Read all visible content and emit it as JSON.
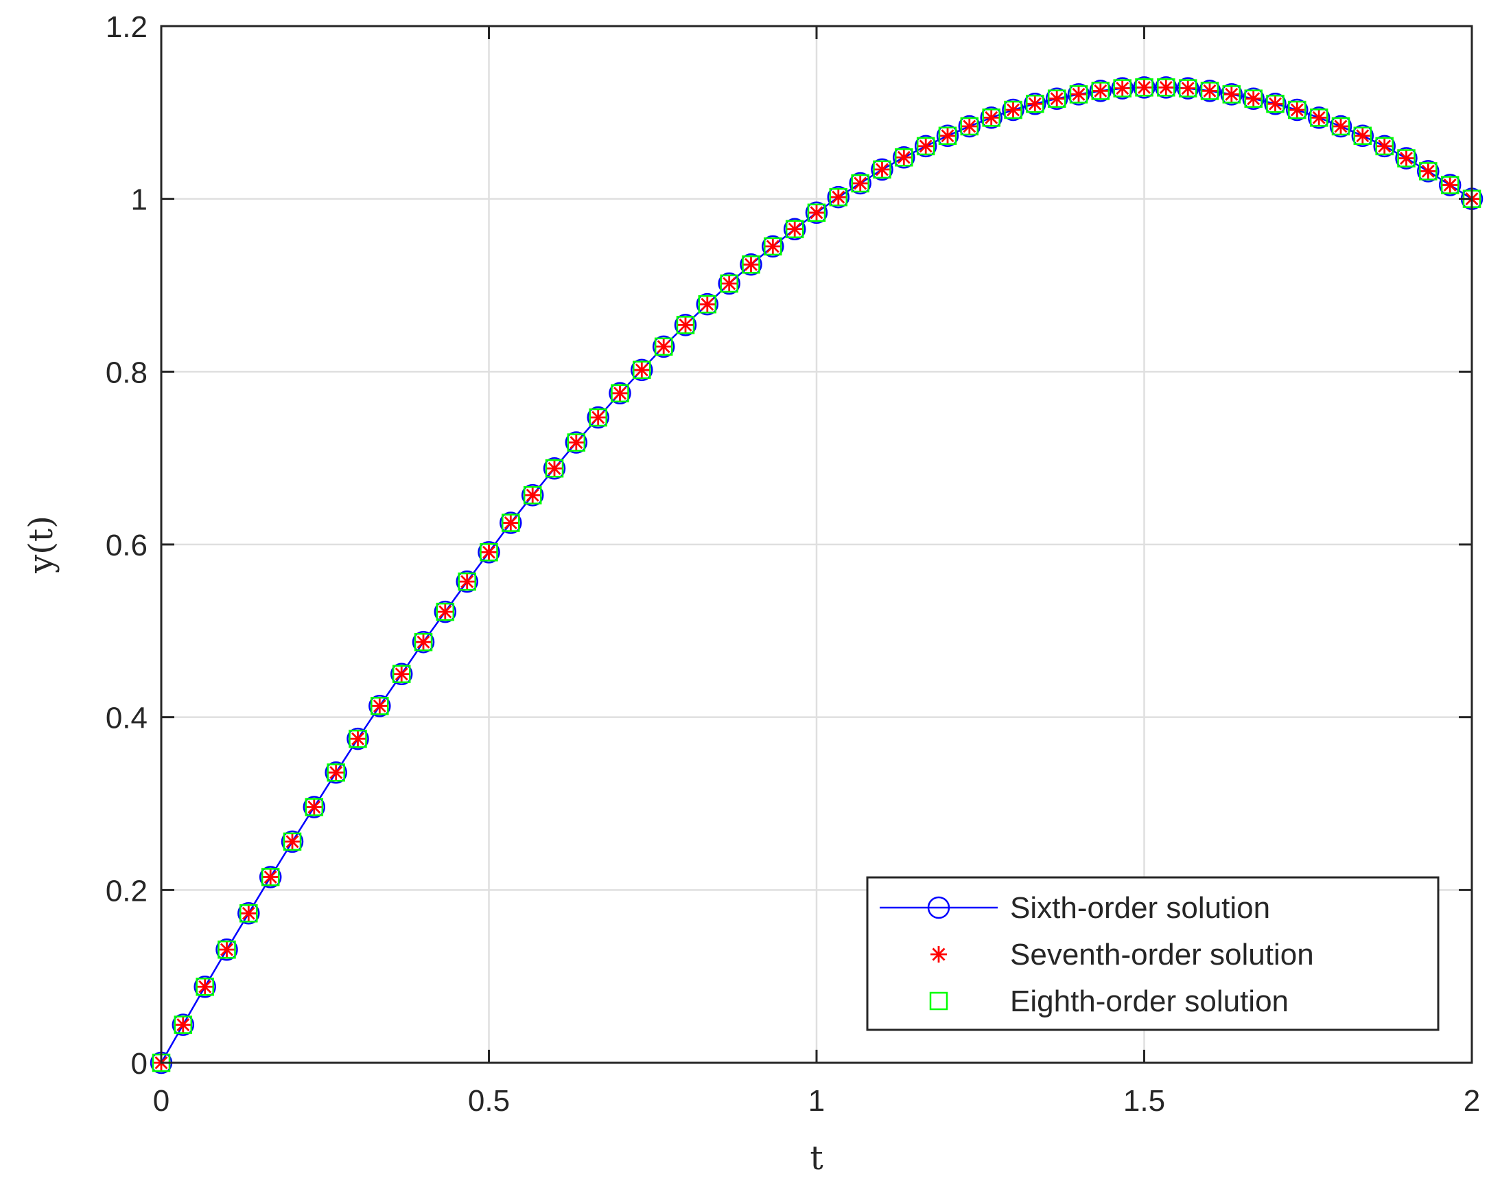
{
  "chart_data": {
    "type": "line",
    "xlabel": "t",
    "ylabel": "y(t)",
    "xlim": [
      0,
      2
    ],
    "ylim": [
      0,
      1.2
    ],
    "xticks": [
      0,
      0.5,
      1,
      1.5,
      2
    ],
    "xtick_labels": [
      "0",
      "0.5",
      "1",
      "1.5",
      "2"
    ],
    "yticks": [
      0,
      0.2,
      0.4,
      0.6,
      0.8,
      1,
      1.2
    ],
    "ytick_labels": [
      "0",
      "0.2",
      "0.4",
      "0.6",
      "0.8",
      "1",
      "1.2"
    ],
    "grid": true,
    "legend_position": "bottom-right",
    "x": [
      0,
      0.0333,
      0.0667,
      0.1,
      0.1333,
      0.1667,
      0.2,
      0.2333,
      0.2667,
      0.3,
      0.3333,
      0.3667,
      0.4,
      0.4333,
      0.4667,
      0.5,
      0.5333,
      0.5667,
      0.6,
      0.6333,
      0.6667,
      0.7,
      0.7333,
      0.7667,
      0.8,
      0.8333,
      0.8667,
      0.9,
      0.9333,
      0.9667,
      1,
      1.0333,
      1.0667,
      1.1,
      1.1333,
      1.1667,
      1.2,
      1.2333,
      1.2667,
      1.3,
      1.3333,
      1.3667,
      1.4,
      1.4333,
      1.4667,
      1.5,
      1.5333,
      1.5667,
      1.6,
      1.6333,
      1.6667,
      1.7,
      1.7333,
      1.7667,
      1.8,
      1.8333,
      1.8667,
      1.9,
      1.9333,
      1.9667,
      2
    ],
    "series": [
      {
        "name": "Sixth-order solution",
        "color": "#0000ff",
        "marker": "circle",
        "line": true,
        "values": [
          0,
          0.044,
          0.088,
          0.131,
          0.173,
          0.215,
          0.256,
          0.296,
          0.336,
          0.375,
          0.413,
          0.45,
          0.487,
          0.522,
          0.557,
          0.591,
          0.625,
          0.657,
          0.688,
          0.718,
          0.747,
          0.775,
          0.802,
          0.829,
          0.854,
          0.878,
          0.902,
          0.924,
          0.945,
          0.965,
          0.984,
          1.002,
          1.018,
          1.034,
          1.048,
          1.061,
          1.073,
          1.084,
          1.094,
          1.103,
          1.11,
          1.116,
          1.121,
          1.125,
          1.128,
          1.129,
          1.129,
          1.128,
          1.125,
          1.121,
          1.116,
          1.11,
          1.103,
          1.094,
          1.084,
          1.073,
          1.061,
          1.047,
          1.032,
          1.016,
          1.0
        ]
      },
      {
        "name": "Seventh-order solution",
        "color": "#ff0000",
        "marker": "star",
        "line": false,
        "values": [
          0,
          0.044,
          0.088,
          0.131,
          0.173,
          0.215,
          0.256,
          0.296,
          0.336,
          0.375,
          0.413,
          0.45,
          0.487,
          0.522,
          0.557,
          0.591,
          0.625,
          0.657,
          0.688,
          0.718,
          0.747,
          0.775,
          0.802,
          0.829,
          0.854,
          0.878,
          0.902,
          0.924,
          0.945,
          0.965,
          0.984,
          1.002,
          1.018,
          1.034,
          1.048,
          1.061,
          1.073,
          1.084,
          1.094,
          1.103,
          1.11,
          1.116,
          1.121,
          1.125,
          1.128,
          1.129,
          1.129,
          1.128,
          1.125,
          1.121,
          1.116,
          1.11,
          1.103,
          1.094,
          1.084,
          1.073,
          1.061,
          1.047,
          1.032,
          1.016,
          1.0
        ]
      },
      {
        "name": "Eighth-order solution",
        "color": "#00ff00",
        "marker": "square",
        "line": false,
        "values": [
          0,
          0.044,
          0.088,
          0.131,
          0.173,
          0.215,
          0.256,
          0.296,
          0.336,
          0.375,
          0.413,
          0.45,
          0.487,
          0.522,
          0.557,
          0.591,
          0.625,
          0.657,
          0.688,
          0.718,
          0.747,
          0.775,
          0.802,
          0.829,
          0.854,
          0.878,
          0.902,
          0.924,
          0.945,
          0.965,
          0.984,
          1.002,
          1.018,
          1.034,
          1.048,
          1.061,
          1.073,
          1.084,
          1.094,
          1.103,
          1.11,
          1.116,
          1.121,
          1.125,
          1.128,
          1.129,
          1.129,
          1.128,
          1.125,
          1.121,
          1.116,
          1.11,
          1.103,
          1.094,
          1.084,
          1.073,
          1.061,
          1.047,
          1.032,
          1.016,
          1.0
        ]
      }
    ]
  }
}
